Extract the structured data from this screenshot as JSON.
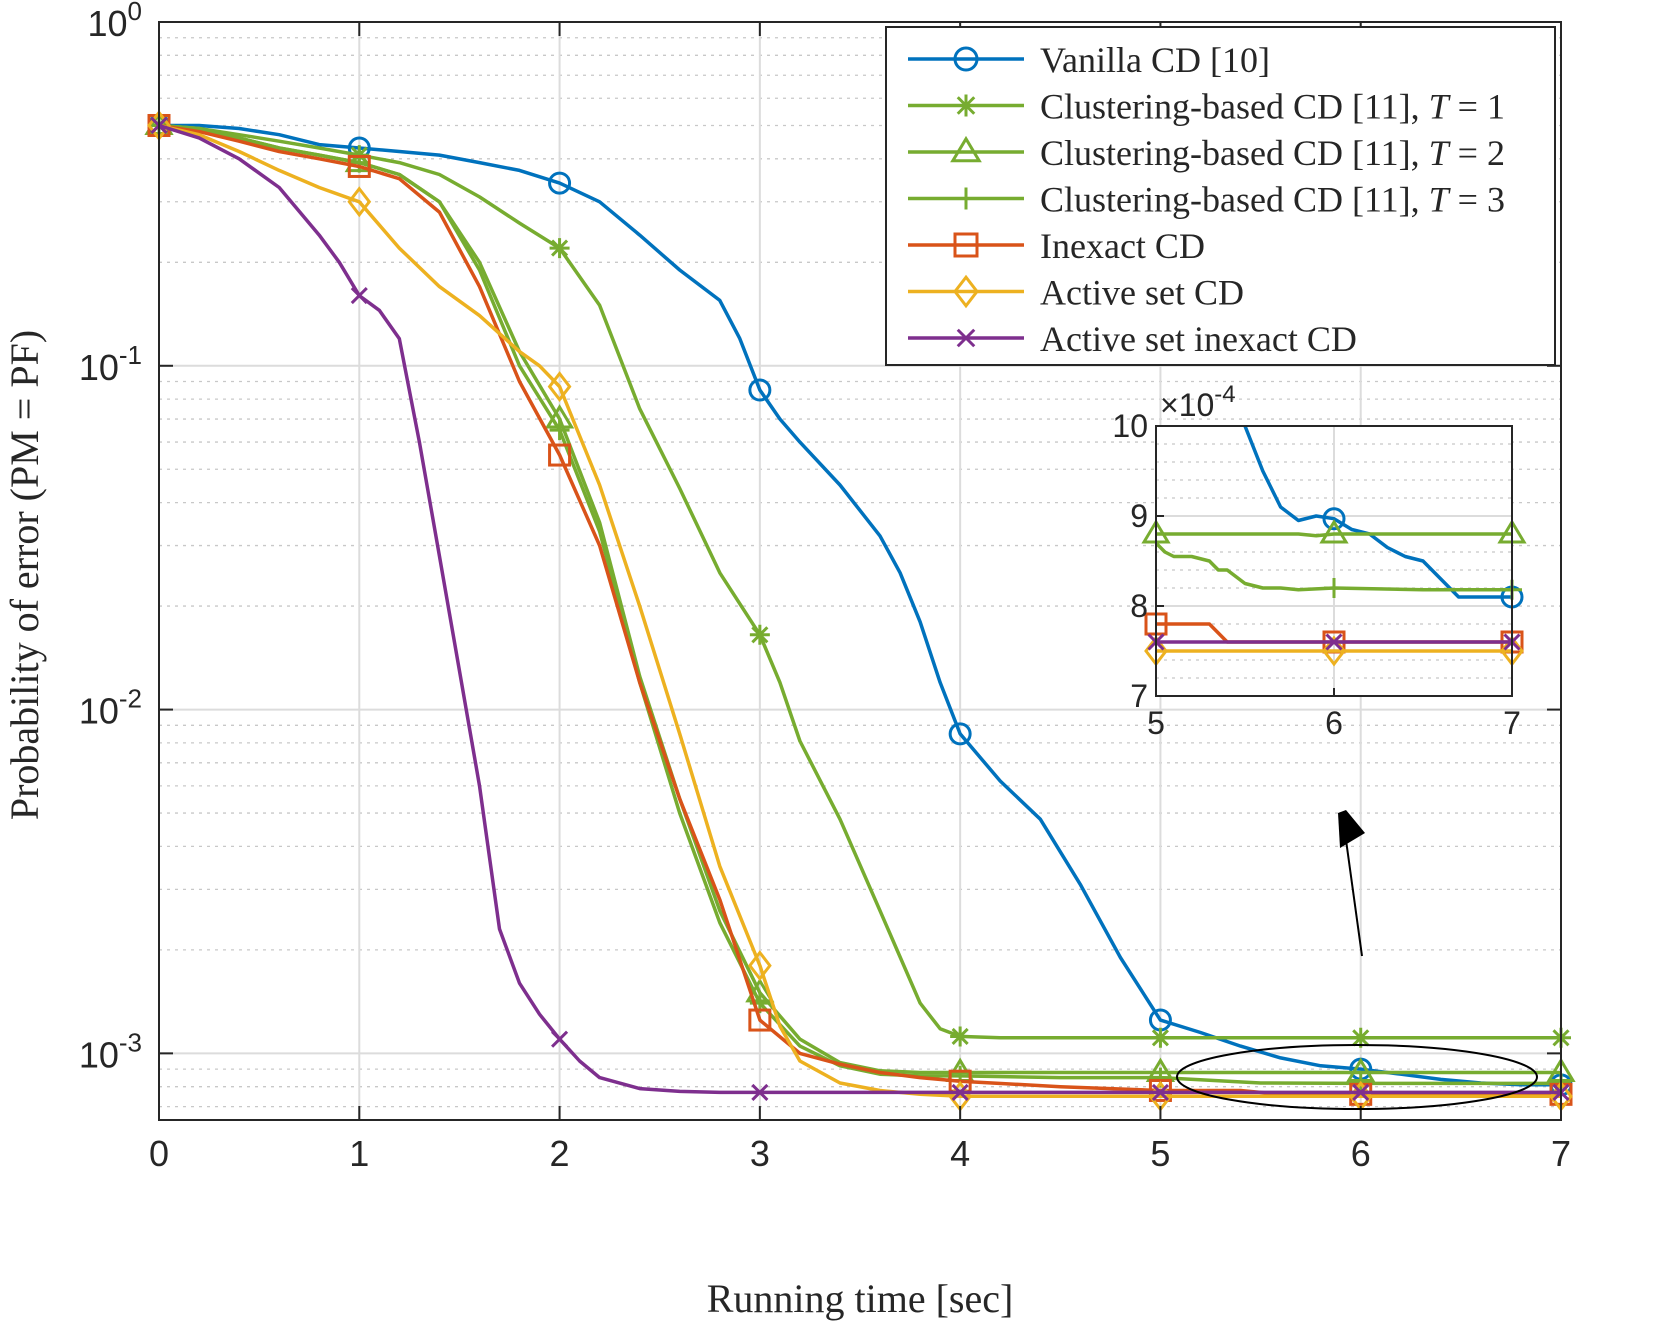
{
  "chart_data": [
    {
      "type": "line",
      "xlabel": "Running time [sec]",
      "ylabel": "Probability of error (PM = PF)",
      "xlim": [
        0,
        7
      ],
      "ylim": [
        0.00064,
        1
      ],
      "y_scale": "log",
      "grid": true,
      "minor_grid": true,
      "legend_position": "top-right",
      "x_ticks": [
        0,
        1,
        2,
        3,
        4,
        5,
        6,
        7
      ],
      "y_ticks": [
        0.001,
        0.01,
        0.1,
        1
      ],
      "x_tick_labels": [
        "0",
        "1",
        "2",
        "3",
        "4",
        "5",
        "6",
        "7"
      ],
      "y_tick_labels": [
        {
          "base": "10",
          "exp": "-3"
        },
        {
          "base": "10",
          "exp": "-2"
        },
        {
          "base": "10",
          "exp": "-1"
        },
        {
          "base": "10",
          "exp": "0"
        }
      ],
      "series": [
        {
          "name": "Vanilla CD [10]",
          "color": "#0072BD",
          "marker": "circle",
          "x": [
            0,
            0.2,
            0.4,
            0.6,
            0.8,
            1,
            1.2,
            1.4,
            1.6,
            1.8,
            2,
            2.2,
            2.4,
            2.6,
            2.8,
            2.9,
            3,
            3.1,
            3.2,
            3.4,
            3.6,
            3.7,
            3.8,
            3.9,
            4,
            4.2,
            4.4,
            4.6,
            4.8,
            5,
            5.2,
            5.4,
            5.6,
            5.8,
            6,
            6.2,
            6.4,
            6.6,
            6.8,
            7
          ],
          "y": [
            0.5,
            0.5,
            0.49,
            0.47,
            0.44,
            0.43,
            0.42,
            0.41,
            0.39,
            0.37,
            0.34,
            0.3,
            0.24,
            0.19,
            0.155,
            0.12,
            0.085,
            0.07,
            0.06,
            0.045,
            0.032,
            0.025,
            0.018,
            0.012,
            0.0085,
            0.0062,
            0.0048,
            0.0031,
            0.0019,
            0.00125,
            0.00115,
            0.00105,
            0.00097,
            0.00092,
            0.0009,
            0.00087,
            0.00084,
            0.00082,
            0.00081,
            0.00081
          ],
          "marker_x": [
            0,
            1,
            2,
            3,
            4,
            5,
            6,
            7
          ]
        },
        {
          "name": "Clustering-based CD [11], T = 1",
          "label_text": "Clustering-based CD [11], ",
          "label_var": "T",
          "label_value": " = 1",
          "color": "#77AC30",
          "marker": "asterisk",
          "x": [
            0,
            0.2,
            0.4,
            0.6,
            0.8,
            1,
            1.2,
            1.4,
            1.6,
            1.8,
            2,
            2.2,
            2.4,
            2.6,
            2.8,
            3,
            3.1,
            3.2,
            3.4,
            3.6,
            3.8,
            3.9,
            4,
            4.2,
            4.5,
            5,
            5.5,
            6,
            6.5,
            7
          ],
          "y": [
            0.5,
            0.49,
            0.47,
            0.45,
            0.43,
            0.41,
            0.39,
            0.36,
            0.31,
            0.26,
            0.22,
            0.15,
            0.075,
            0.044,
            0.025,
            0.0165,
            0.012,
            0.0081,
            0.0048,
            0.0026,
            0.0014,
            0.00118,
            0.00112,
            0.00111,
            0.00111,
            0.00111,
            0.00111,
            0.00111,
            0.00111,
            0.00111
          ],
          "marker_x": [
            0,
            1,
            2,
            3,
            4,
            5,
            6,
            7
          ]
        },
        {
          "name": "Clustering-based CD [11], T = 2",
          "label_text": "Clustering-based CD [11], ",
          "label_var": "T",
          "label_value": " = 2",
          "color": "#77AC30",
          "marker": "triangle",
          "x": [
            0,
            0.2,
            0.4,
            0.6,
            0.8,
            1,
            1.2,
            1.4,
            1.6,
            1.8,
            2,
            2.2,
            2.4,
            2.6,
            2.8,
            3,
            3.2,
            3.4,
            3.6,
            3.8,
            4,
            4.5,
            5,
            5.5,
            6,
            6.5,
            7
          ],
          "y": [
            0.5,
            0.49,
            0.46,
            0.43,
            0.41,
            0.39,
            0.36,
            0.3,
            0.2,
            0.11,
            0.07,
            0.035,
            0.0125,
            0.0055,
            0.0026,
            0.0015,
            0.0011,
            0.00094,
            0.00089,
            0.00088,
            0.00088,
            0.00088,
            0.00088,
            0.00088,
            0.00088,
            0.00088,
            0.00088
          ],
          "marker_x": [
            0,
            1,
            2,
            3,
            4,
            5,
            6,
            7
          ]
        },
        {
          "name": "Clustering-based CD [11], T = 3",
          "label_text": "Clustering-based CD [11], ",
          "label_var": "T",
          "label_value": " = 3",
          "color": "#77AC30",
          "marker": "plus",
          "x": [
            0,
            0.2,
            0.4,
            0.6,
            0.8,
            1,
            1.2,
            1.4,
            1.6,
            1.8,
            2,
            2.2,
            2.4,
            2.6,
            2.8,
            3,
            3.2,
            3.4,
            3.6,
            3.8,
            4,
            4.5,
            5,
            5.5,
            6,
            6.5,
            7
          ],
          "y": [
            0.5,
            0.49,
            0.46,
            0.43,
            0.41,
            0.39,
            0.36,
            0.3,
            0.19,
            0.1,
            0.065,
            0.033,
            0.012,
            0.005,
            0.0024,
            0.0014,
            0.00105,
            0.00092,
            0.00087,
            0.00086,
            0.00086,
            0.00085,
            0.00085,
            0.00082,
            0.000818,
            0.000818,
            0.000818
          ],
          "marker_x": [
            0,
            1,
            2,
            3,
            4,
            5,
            6,
            7
          ]
        },
        {
          "name": "Inexact CD",
          "color": "#D95319",
          "marker": "square",
          "x": [
            0,
            0.2,
            0.4,
            0.6,
            0.8,
            1,
            1.2,
            1.4,
            1.6,
            1.8,
            2,
            2.2,
            2.4,
            2.6,
            2.8,
            3,
            3.2,
            3.4,
            3.6,
            3.8,
            4,
            4.5,
            5,
            5.2,
            5.4,
            5.6,
            7
          ],
          "y": [
            0.5,
            0.48,
            0.45,
            0.42,
            0.4,
            0.38,
            0.35,
            0.28,
            0.17,
            0.09,
            0.055,
            0.03,
            0.012,
            0.0055,
            0.0028,
            0.00125,
            0.001,
            0.00093,
            0.00088,
            0.00085,
            0.00083,
            0.0008,
            0.00078,
            0.00078,
            0.00078,
            0.00076,
            0.00076
          ],
          "marker_x": [
            0,
            1,
            2,
            3,
            4,
            5,
            6,
            7
          ]
        },
        {
          "name": "Active set CD",
          "color": "#EDB120",
          "marker": "diamond",
          "x": [
            0,
            0.2,
            0.4,
            0.6,
            0.8,
            1,
            1.2,
            1.4,
            1.6,
            1.8,
            1.9,
            2,
            2.2,
            2.4,
            2.6,
            2.8,
            3,
            3.1,
            3.2,
            3.4,
            3.6,
            3.8,
            4,
            4.5,
            5,
            6,
            7
          ],
          "y": [
            0.5,
            0.47,
            0.42,
            0.37,
            0.33,
            0.3,
            0.22,
            0.17,
            0.14,
            0.11,
            0.1,
            0.087,
            0.045,
            0.02,
            0.0085,
            0.0035,
            0.0018,
            0.0012,
            0.00095,
            0.00082,
            0.00078,
            0.00076,
            0.00075,
            0.00075,
            0.00075,
            0.00075,
            0.00075
          ],
          "marker_x": [
            0,
            1,
            2,
            3,
            4,
            5,
            6,
            7
          ]
        },
        {
          "name": "Active set inexact CD",
          "color": "#7E2F8E",
          "marker": "x",
          "x": [
            0,
            0.2,
            0.4,
            0.6,
            0.8,
            0.9,
            1,
            1.1,
            1.2,
            1.3,
            1.4,
            1.5,
            1.6,
            1.7,
            1.8,
            1.9,
            2,
            2.1,
            2.2,
            2.4,
            2.6,
            2.8,
            3,
            3.5,
            4,
            5,
            6,
            7
          ],
          "y": [
            0.5,
            0.46,
            0.4,
            0.33,
            0.24,
            0.2,
            0.16,
            0.145,
            0.12,
            0.06,
            0.028,
            0.013,
            0.006,
            0.0023,
            0.0016,
            0.0013,
            0.0011,
            0.00095,
            0.00085,
            0.00079,
            0.000775,
            0.00077,
            0.00077,
            0.00077,
            0.00077,
            0.00077,
            0.00077,
            0.00077
          ],
          "marker_x": [
            0,
            1,
            2,
            3,
            4,
            5,
            6,
            7
          ]
        }
      ]
    },
    {
      "type": "line",
      "role": "inset",
      "xlim": [
        5,
        7
      ],
      "ylim": [
        7,
        10
      ],
      "y_multiplier": {
        "base": "×10",
        "exp": "-4"
      },
      "grid": true,
      "x_ticks": [
        5,
        6,
        7
      ],
      "x_tick_labels": [
        "5",
        "6",
        "7"
      ],
      "y_ticks": [
        7,
        8,
        9,
        10
      ],
      "y_tick_labels": [
        "7",
        "8",
        "9",
        "10"
      ],
      "series": [
        {
          "color": "#0072BD",
          "marker": "circle",
          "x": [
            5.5,
            5.6,
            5.7,
            5.8,
            5.9,
            6,
            6.1,
            6.2,
            6.3,
            6.4,
            6.5,
            6.6,
            6.7,
            7
          ],
          "y": [
            10.0,
            9.5,
            9.1,
            8.95,
            9.0,
            8.97,
            8.85,
            8.8,
            8.65,
            8.55,
            8.5,
            8.3,
            8.1,
            8.1
          ],
          "marker_x": [
            6,
            7
          ]
        },
        {
          "color": "#77AC30",
          "marker": "triangle",
          "x": [
            5,
            5.8,
            5.9,
            6,
            7
          ],
          "y": [
            8.8,
            8.8,
            8.78,
            8.8,
            8.8
          ],
          "marker_x": [
            5,
            6,
            7
          ]
        },
        {
          "color": "#77AC30",
          "marker": "plus",
          "x": [
            5,
            5.05,
            5.1,
            5.2,
            5.3,
            5.35,
            5.4,
            5.5,
            5.6,
            5.7,
            5.8,
            6,
            6.5,
            7
          ],
          "y": [
            8.7,
            8.6,
            8.55,
            8.55,
            8.5,
            8.4,
            8.4,
            8.25,
            8.2,
            8.2,
            8.18,
            8.2,
            8.18,
            8.18
          ],
          "marker_x": [
            6,
            7
          ]
        },
        {
          "color": "#D95319",
          "marker": "square",
          "x": [
            5,
            5.2,
            5.3,
            5.35,
            5.4,
            7
          ],
          "y": [
            7.8,
            7.8,
            7.8,
            7.7,
            7.6,
            7.6
          ],
          "marker_x": [
            5,
            6,
            7
          ]
        },
        {
          "color": "#EDB120",
          "marker": "diamond",
          "x": [
            5,
            7
          ],
          "y": [
            7.5,
            7.5
          ],
          "marker_x": [
            5,
            6,
            7
          ]
        },
        {
          "color": "#7E2F8E",
          "marker": "x",
          "x": [
            5,
            7
          ],
          "y": [
            7.6,
            7.6
          ],
          "marker_x": [
            5,
            6,
            7
          ]
        }
      ]
    }
  ]
}
